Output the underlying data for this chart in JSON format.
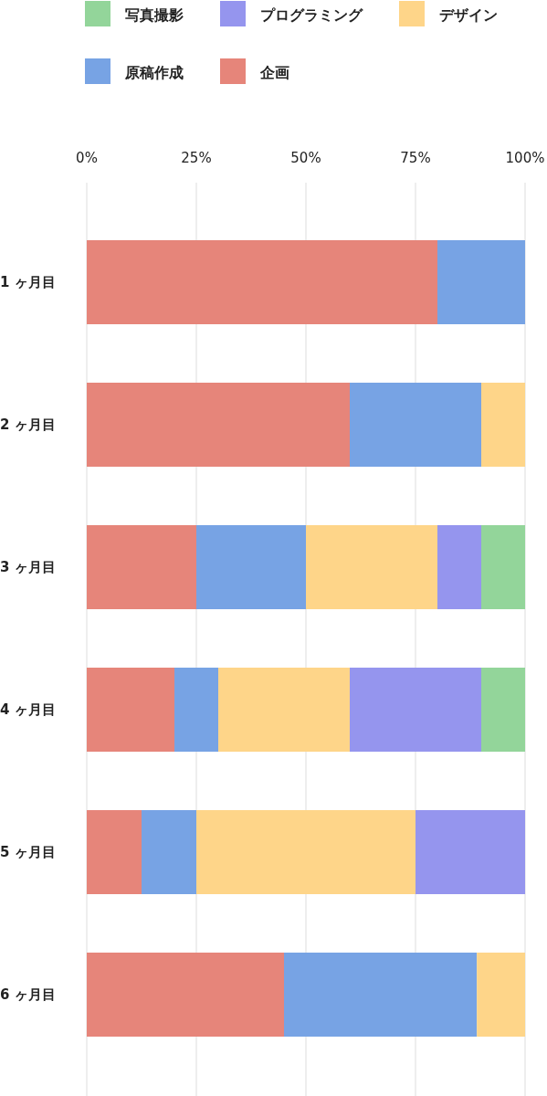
{
  "chart_data": {
    "type": "bar",
    "orientation": "horizontal",
    "stacked": true,
    "legend": "top",
    "grid": "x",
    "categories": [
      "1 ヶ月目",
      "2 ヶ月目",
      "3 ヶ月目",
      "4 ヶ月目",
      "5 ヶ月目",
      "6 ヶ月目"
    ],
    "xlim": [
      0,
      100
    ],
    "xticks": [
      {
        "value": 0,
        "label": "0%"
      },
      {
        "value": 25,
        "label": "25%"
      },
      {
        "value": 50,
        "label": "50%"
      },
      {
        "value": 75,
        "label": "75%"
      },
      {
        "value": 100,
        "label": "100%"
      }
    ],
    "series": [
      {
        "name": "企画",
        "color": "#e6857a",
        "values": [
          80,
          60,
          25,
          20,
          12.5,
          45
        ]
      },
      {
        "name": "原稿作成",
        "color": "#77a3e4",
        "values": [
          20,
          30,
          25,
          10,
          12.5,
          44
        ]
      },
      {
        "name": "デザイン",
        "color": "#fed589",
        "values": [
          null,
          10,
          30,
          30,
          50,
          11
        ]
      },
      {
        "name": "プログラミング",
        "color": "#9595ee",
        "values": [
          null,
          null,
          10,
          30,
          25,
          null
        ]
      },
      {
        "name": "写真撮影",
        "color": "#93d59a",
        "values": [
          null,
          null,
          10,
          10,
          null,
          null
        ]
      }
    ]
  }
}
